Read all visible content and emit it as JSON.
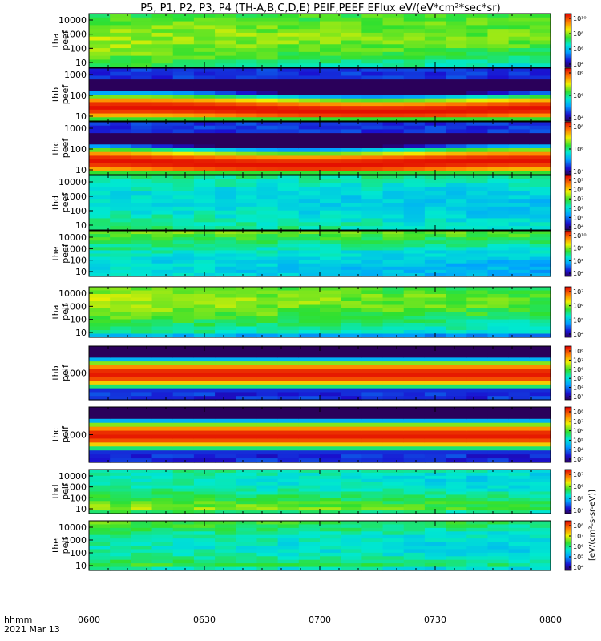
{
  "title": "P5, P1, P2, P3, P4 (TH-A,B,C,D,E) PEIF,PEEF EFlux eV/(eV*cm²*sec*sr)",
  "time_axis": {
    "ticks": [
      "0600",
      "0630",
      "0700",
      "0730",
      "0800"
    ],
    "left_label": "hhmm",
    "date_label": "2021 Mar 13"
  },
  "colorbar_unit_label": "[eV/(cm²-s-sr-eV)]",
  "panels": [
    {
      "id": "tha_peef",
      "line1": "tha",
      "line2": "peef",
      "yticks": [
        "10",
        "100",
        "1000",
        "10000"
      ],
      "cbticks": [
        "10⁴",
        "10⁶",
        "10⁸",
        "10¹⁰"
      ],
      "profile": "sheath_e"
    },
    {
      "id": "thb_peef",
      "line1": "thb",
      "line2": "peef",
      "yticks": [
        "10",
        "100",
        "1000"
      ],
      "cbticks": [
        "10⁴",
        "10⁶",
        "10⁸"
      ],
      "profile": "hot_e"
    },
    {
      "id": "thc_peef",
      "line1": "thc",
      "line2": "peef",
      "yticks": [
        "10",
        "100",
        "1000"
      ],
      "cbticks": [
        "10⁴",
        "10⁶",
        "10⁸"
      ],
      "profile": "hot_e"
    },
    {
      "id": "thd_peef",
      "line1": "thd",
      "line2": "peef",
      "yticks": [
        "10",
        "100",
        "1000",
        "10000"
      ],
      "cbticks": [
        "10⁴",
        "10⁵",
        "10⁶",
        "10⁷",
        "10⁸",
        "10⁹"
      ],
      "profile": "sheath_e"
    },
    {
      "id": "the_peef",
      "line1": "the",
      "line2": "peef",
      "yticks": [
        "10",
        "100",
        "1000",
        "10000"
      ],
      "cbticks": [
        "10⁴",
        "10⁶",
        "10⁸",
        "10¹⁰"
      ],
      "profile": "sheath_e"
    },
    {
      "id": "tha_peif",
      "line1": "tha",
      "line2": "peif",
      "yticks": [
        "10",
        "100",
        "1000",
        "10000"
      ],
      "cbticks": [
        "10⁴",
        "10⁵",
        "10⁶",
        "10⁷"
      ],
      "profile": "sheath_i"
    },
    {
      "id": "thb_peif",
      "line1": "thb",
      "line2": "peif",
      "yticks": [
        "1000"
      ],
      "cbticks": [
        "10³",
        "10⁴",
        "10⁵",
        "10⁶",
        "10⁷",
        "10⁸"
      ],
      "profile": "band_i"
    },
    {
      "id": "thc_peif",
      "line1": "thc",
      "line2": "peif",
      "yticks": [
        "1000"
      ],
      "cbticks": [
        "10³",
        "10⁴",
        "10⁵",
        "10⁶",
        "10⁷",
        "10⁸"
      ],
      "profile": "band_i"
    },
    {
      "id": "thd_peif",
      "line1": "thd",
      "line2": "peif",
      "yticks": [
        "10",
        "100",
        "1000",
        "10000"
      ],
      "cbticks": [
        "10⁴",
        "10⁵",
        "10⁶",
        "10⁷"
      ],
      "profile": "sheath_i"
    },
    {
      "id": "the_peif",
      "line1": "the",
      "line2": "peif",
      "yticks": [
        "10",
        "100",
        "1000",
        "10000"
      ],
      "cbticks": [
        "10⁴",
        "10⁵",
        "10⁶",
        "10⁷",
        "10⁸"
      ],
      "profile": "sheath_i"
    }
  ]
}
